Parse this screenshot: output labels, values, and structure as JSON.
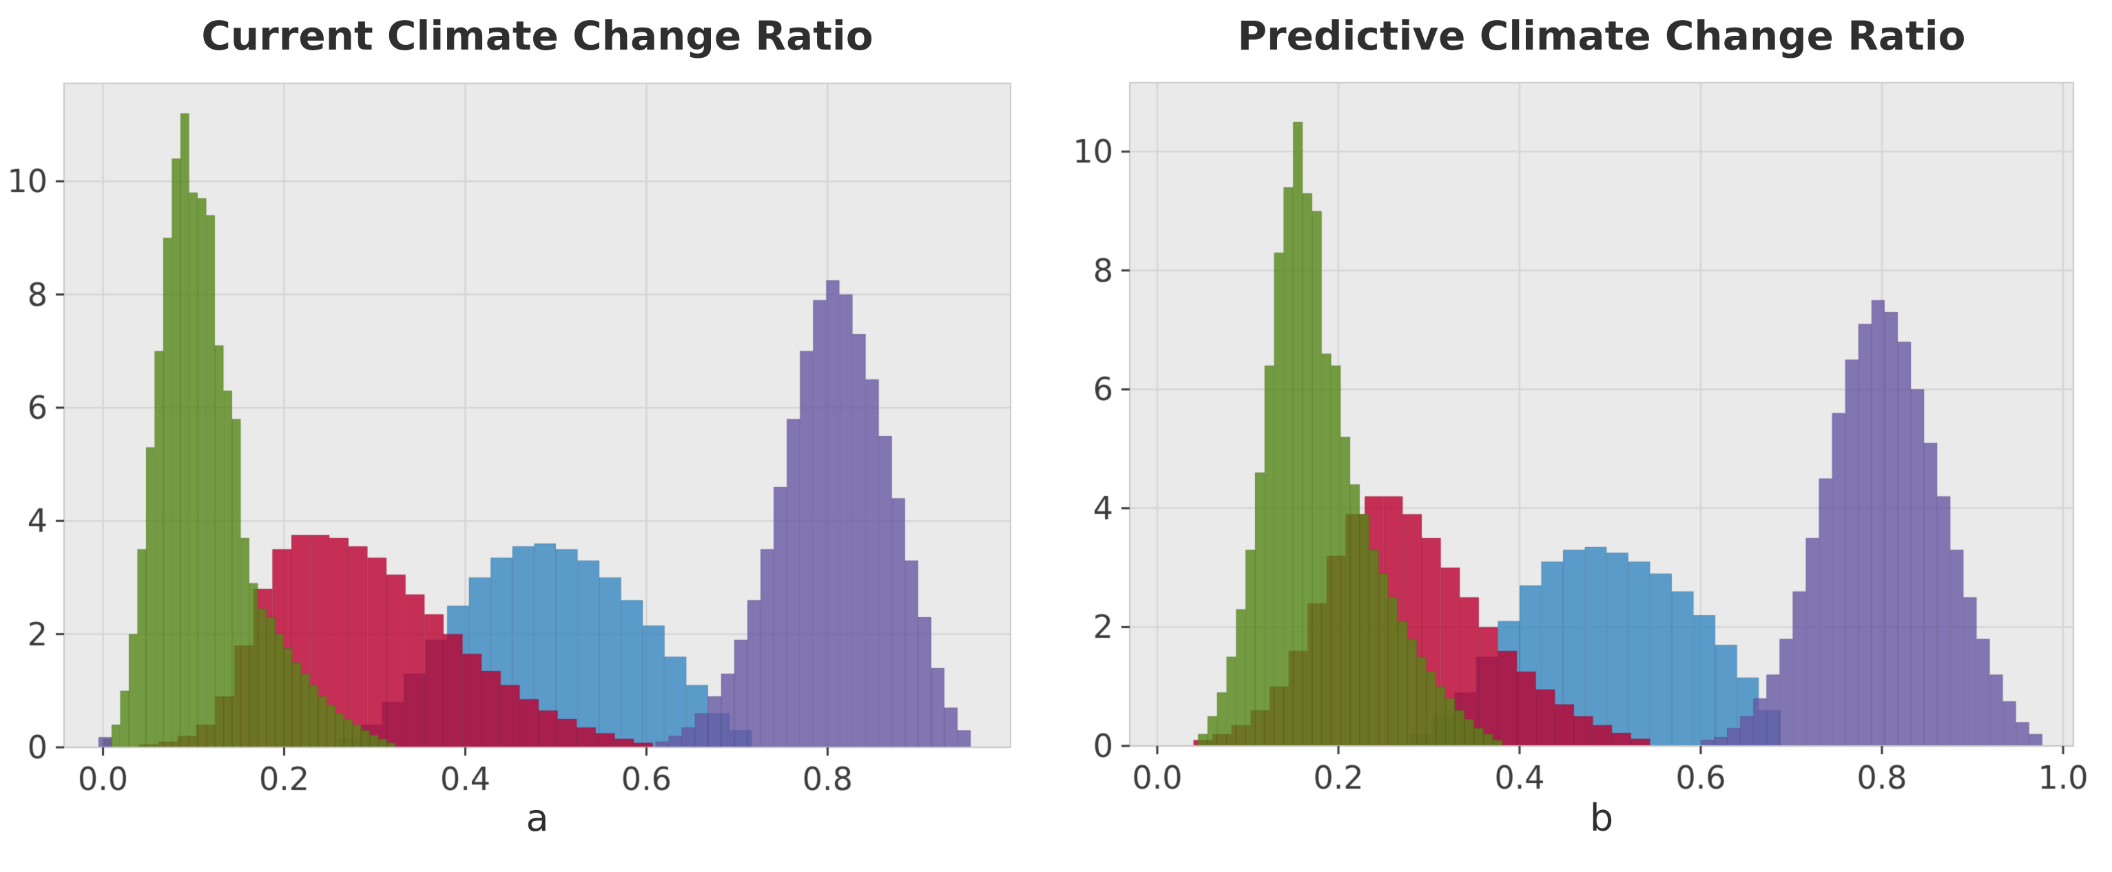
{
  "figure": {
    "background": "#ffffff"
  },
  "chart_data": {
    "type": "histogram",
    "layout_hint": "two overlaid-histogram panels side by side, ggplot-style gray plot background, grid on, no legend",
    "charts": [
      {
        "id": "a",
        "title": "Current Climate Change Ratio",
        "axis_label": "a",
        "x_tick_labels": [
          "0.0",
          "0.2",
          "0.4",
          "0.6",
          "0.8"
        ],
        "x_tick_values": [
          0.0,
          0.2,
          0.4,
          0.6,
          0.8
        ],
        "y_tick_labels": [
          "0",
          "2",
          "4",
          "6",
          "8",
          "10"
        ],
        "y_tick_values": [
          0,
          2,
          4,
          6,
          8,
          10
        ],
        "xlim": [
          -0.043,
          1.002
        ],
        "ylim": [
          0,
          11.73
        ],
        "plot_bg": "#eaeaea",
        "grid_color": "#d6d6d6",
        "border_color": "#c8c8c8",
        "tick_color": "#3b3b3b",
        "series": [
          {
            "name": "blue-distribution",
            "color": "#3787C0",
            "alpha": 0.8,
            "bin_start": 0.26,
            "bin_width": 0.024,
            "heights": [
              0.15,
              0.4,
              0.8,
              1.3,
              1.9,
              2.5,
              3.0,
              3.35,
              3.55,
              3.6,
              3.5,
              3.3,
              3.0,
              2.6,
              2.15,
              1.6,
              1.1,
              0.6,
              0.3
            ]
          },
          {
            "name": "red-distribution",
            "color": "#BB0030",
            "alpha": 0.8,
            "bin_start": 0.04,
            "bin_width": 0.021,
            "heights": [
              0.05,
              0.1,
              0.2,
              0.4,
              0.9,
              1.8,
              2.8,
              3.5,
              3.75,
              3.75,
              3.7,
              3.55,
              3.35,
              3.05,
              2.7,
              2.35,
              2.0,
              1.65,
              1.35,
              1.1,
              0.85,
              0.65,
              0.5,
              0.35,
              0.25,
              0.15,
              0.08
            ]
          },
          {
            "name": "green-distribution",
            "color": "#558716",
            "alpha": 0.8,
            "bin_start": 0.0,
            "bin_width": 0.0095,
            "heights": [
              0.15,
              0.4,
              1.0,
              2.0,
              3.5,
              5.3,
              7.0,
              9.0,
              10.4,
              11.2,
              9.8,
              9.7,
              9.4,
              7.1,
              6.3,
              5.8,
              3.7,
              2.9,
              2.45,
              2.3,
              2.0,
              1.75,
              1.5,
              1.3,
              1.1,
              0.9,
              0.75,
              0.6,
              0.5,
              0.4,
              0.3,
              0.22,
              0.15,
              0.08
            ]
          },
          {
            "name": "purple-distribution",
            "color": "#6758A4",
            "alpha": 0.8,
            "bin_start": 0.61,
            "bin_width": 0.0145,
            "heights": [
              0.1,
              0.2,
              0.35,
              0.6,
              0.9,
              1.3,
              1.9,
              2.6,
              3.5,
              4.6,
              5.8,
              7.0,
              7.9,
              8.25,
              8.0,
              7.3,
              6.5,
              5.5,
              4.4,
              3.3,
              2.3,
              1.4,
              0.7,
              0.3
            ]
          },
          {
            "name": "purple-outlier",
            "color": "#6758A4",
            "alpha": 0.8,
            "bin_start": -0.005,
            "bin_width": 0.0145,
            "heights": [
              0.18
            ]
          }
        ]
      },
      {
        "id": "b",
        "title": "Predictive Climate Change Ratio",
        "axis_label": "b",
        "x_tick_labels": [
          "0.0",
          "0.2",
          "0.4",
          "0.6",
          "0.8",
          "1.0"
        ],
        "x_tick_values": [
          0.0,
          0.2,
          0.4,
          0.6,
          0.8,
          1.0
        ],
        "y_tick_labels": [
          "0",
          "2",
          "4",
          "6",
          "8",
          "10"
        ],
        "y_tick_values": [
          0,
          2,
          4,
          6,
          8,
          10
        ],
        "xlim": [
          -0.0304,
          1.0114
        ],
        "ylim": [
          0,
          11.16
        ],
        "plot_bg": "#eaeaea",
        "grid_color": "#d6d6d6",
        "border_color": "#c8c8c8",
        "tick_color": "#3b3b3b",
        "series": [
          {
            "name": "blue-distribution",
            "color": "#3787C0",
            "alpha": 0.8,
            "bin_start": 0.28,
            "bin_width": 0.024,
            "heights": [
              0.2,
              0.5,
              0.9,
              1.5,
              2.1,
              2.7,
              3.1,
              3.3,
              3.35,
              3.25,
              3.1,
              2.9,
              2.6,
              2.2,
              1.7,
              1.15,
              0.6
            ]
          },
          {
            "name": "red-distribution",
            "color": "#BB0030",
            "alpha": 0.8,
            "bin_start": 0.04,
            "bin_width": 0.021,
            "heights": [
              0.1,
              0.2,
              0.35,
              0.6,
              1.0,
              1.6,
              2.4,
              3.2,
              3.9,
              4.2,
              4.2,
              3.9,
              3.5,
              3.0,
              2.5,
              2.0,
              1.6,
              1.25,
              0.95,
              0.7,
              0.5,
              0.35,
              0.22,
              0.12
            ]
          },
          {
            "name": "green-distribution",
            "color": "#558716",
            "alpha": 0.8,
            "bin_start": 0.045,
            "bin_width": 0.0105,
            "heights": [
              0.2,
              0.5,
              0.9,
              1.5,
              2.3,
              3.3,
              4.6,
              6.4,
              8.3,
              9.4,
              10.5,
              9.3,
              9.0,
              6.6,
              6.4,
              5.2,
              4.4,
              3.9,
              3.3,
              2.9,
              2.5,
              2.1,
              1.8,
              1.5,
              1.25,
              1.0,
              0.8,
              0.6,
              0.45,
              0.3,
              0.2,
              0.1
            ]
          },
          {
            "name": "purple-distribution",
            "color": "#6758A4",
            "alpha": 0.8,
            "bin_start": 0.6,
            "bin_width": 0.0145,
            "heights": [
              0.1,
              0.15,
              0.3,
              0.5,
              0.8,
              1.2,
              1.8,
              2.6,
              3.5,
              4.5,
              5.6,
              6.5,
              7.1,
              7.5,
              7.3,
              6.8,
              6.0,
              5.1,
              4.2,
              3.3,
              2.5,
              1.8,
              1.2,
              0.75,
              0.4,
              0.2
            ]
          }
        ]
      }
    ]
  },
  "titles": {
    "chart_a": "Current Climate Change Ratio",
    "chart_b": "Predictive Climate Change Ratio",
    "label_a": "a",
    "label_b": "b"
  }
}
